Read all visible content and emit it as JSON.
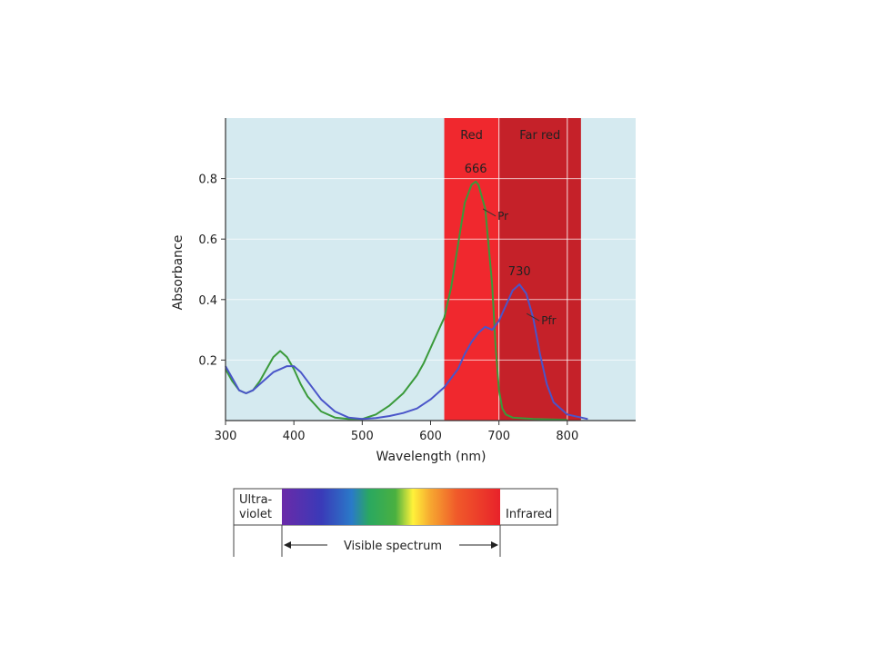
{
  "chart_data": {
    "type": "line",
    "xlabel": "Wavelength (nm)",
    "ylabel": "Absorbance",
    "xlim": [
      300,
      900
    ],
    "ylim": [
      0,
      1.0
    ],
    "x_ticks": [
      "300",
      "400",
      "500",
      "600",
      "700",
      "800"
    ],
    "y_ticks": [
      "0.2",
      "0.4",
      "0.6",
      "0.8"
    ],
    "grid": true,
    "bands": [
      {
        "label": "Red",
        "from": 620,
        "to": 700,
        "color": "#f0282e"
      },
      {
        "label": "Far red",
        "from": 700,
        "to": 820,
        "color": "#c52129"
      }
    ],
    "series": [
      {
        "name": "Pr",
        "color": "#3a9a3a",
        "peak_label": "666",
        "x": [
          300,
          310,
          320,
          330,
          340,
          350,
          360,
          370,
          380,
          390,
          400,
          410,
          420,
          440,
          460,
          480,
          500,
          520,
          540,
          560,
          580,
          590,
          600,
          610,
          620,
          630,
          640,
          650,
          660,
          666,
          670,
          680,
          690,
          695,
          700,
          705,
          710,
          720,
          750,
          800
        ],
        "y": [
          0.17,
          0.13,
          0.1,
          0.09,
          0.1,
          0.13,
          0.17,
          0.21,
          0.23,
          0.21,
          0.17,
          0.12,
          0.08,
          0.03,
          0.01,
          0.005,
          0.005,
          0.02,
          0.05,
          0.09,
          0.15,
          0.19,
          0.24,
          0.29,
          0.34,
          0.44,
          0.58,
          0.72,
          0.78,
          0.79,
          0.78,
          0.7,
          0.45,
          0.25,
          0.1,
          0.04,
          0.02,
          0.01,
          0.005,
          0.002
        ]
      },
      {
        "name": "Pfr",
        "color": "#4a55c9",
        "peak_label": "730",
        "x": [
          300,
          310,
          320,
          330,
          340,
          350,
          360,
          370,
          380,
          390,
          400,
          410,
          420,
          440,
          460,
          480,
          500,
          520,
          540,
          560,
          580,
          600,
          620,
          640,
          650,
          660,
          670,
          680,
          690,
          700,
          710,
          720,
          730,
          740,
          750,
          760,
          770,
          780,
          800,
          830
        ],
        "y": [
          0.18,
          0.14,
          0.1,
          0.09,
          0.1,
          0.12,
          0.14,
          0.16,
          0.17,
          0.18,
          0.18,
          0.16,
          0.13,
          0.07,
          0.03,
          0.01,
          0.005,
          0.008,
          0.015,
          0.025,
          0.04,
          0.07,
          0.11,
          0.17,
          0.22,
          0.26,
          0.29,
          0.31,
          0.3,
          0.33,
          0.38,
          0.43,
          0.45,
          0.42,
          0.34,
          0.22,
          0.12,
          0.06,
          0.02,
          0.005
        ]
      }
    ]
  },
  "spectrum_bar": {
    "uv_label_line1": "Ultra-",
    "uv_label_line2": "violet",
    "ir_label": "Infrared",
    "visible_label": "Visible spectrum"
  }
}
